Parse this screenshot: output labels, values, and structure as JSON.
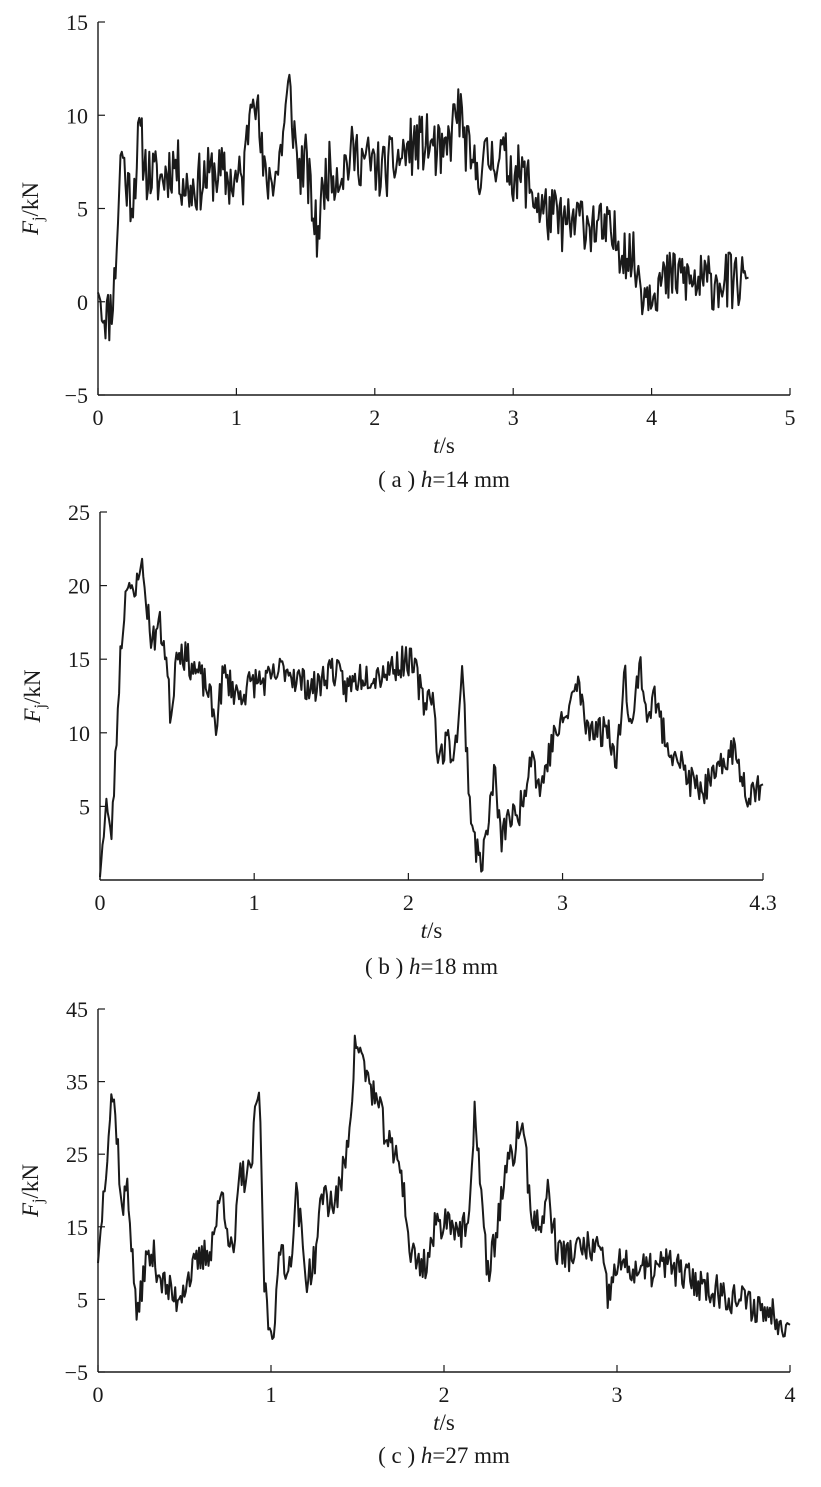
{
  "chart_data": [
    {
      "type": "line",
      "ylabel_main": "F",
      "ylabel_sub": "j",
      "ylabel_unit": "/kN",
      "xlabel_main": "t",
      "xlabel_unit": "/s",
      "caption": {
        "open": "( a ) ",
        "var": "h",
        "rest": "=14 mm"
      },
      "xlim": [
        0,
        5
      ],
      "ylim": [
        -5,
        15
      ],
      "xticks": [
        0,
        1,
        2,
        3,
        4,
        5
      ],
      "xtick_labels": [
        "0",
        "1",
        "2",
        "3",
        "4",
        "5"
      ],
      "yticks": [
        -5,
        0,
        5,
        10,
        15
      ],
      "ytick_labels": [
        "−5",
        "0",
        "5",
        "10",
        "15"
      ],
      "grid": false,
      "noise": 1.6,
      "seed": 11,
      "series": [
        {
          "x": [
            0,
            0.04,
            0.08,
            0.12,
            0.15,
            0.17,
            0.2,
            0.25,
            0.3,
            0.35,
            0.45,
            0.55,
            0.65,
            0.75,
            0.85,
            0.95,
            1.05,
            1.12,
            1.2,
            1.3,
            1.38,
            1.45,
            1.5,
            1.58,
            1.65,
            1.75,
            1.85,
            1.95,
            2.05,
            2.15,
            2.22,
            2.3,
            2.4,
            2.5,
            2.6,
            2.7,
            2.8,
            2.9,
            3.0,
            3.1,
            3.2,
            3.3,
            3.4,
            3.5,
            3.6,
            3.7,
            3.8,
            3.88,
            3.95,
            4.0,
            4.1,
            4.2,
            4.3,
            4.4,
            4.5,
            4.6,
            4.7
          ],
          "y": [
            0.5,
            -0.5,
            -0.8,
            1.0,
            5.5,
            8.5,
            6.5,
            5.5,
            9.0,
            7.0,
            6.5,
            7.5,
            6.0,
            6.5,
            7.0,
            6.5,
            6.5,
            12.5,
            6.5,
            7.0,
            11.5,
            7.0,
            7.5,
            3.5,
            7.0,
            7.0,
            8.0,
            7.5,
            7.0,
            7.5,
            8.0,
            8.5,
            8.5,
            7.5,
            10.5,
            7.0,
            7.5,
            8.0,
            7.0,
            6.5,
            5.0,
            4.5,
            4.0,
            4.5,
            4.0,
            3.5,
            3.0,
            2.0,
            0.5,
            1.0,
            1.0,
            1.5,
            1.0,
            1.0,
            1.2,
            1.0,
            1.3
          ]
        }
      ]
    },
    {
      "type": "line",
      "ylabel_main": "F",
      "ylabel_sub": "j",
      "ylabel_unit": "/kN",
      "xlabel_main": "t",
      "xlabel_unit": "/s",
      "caption": {
        "open": "( b ) ",
        "var": "h",
        "rest": "=18 mm"
      },
      "xlim": [
        0,
        4.3
      ],
      "ylim": [
        0,
        25
      ],
      "xticks": [
        0,
        1,
        2,
        3,
        4.3
      ],
      "xtick_labels": [
        "0",
        "1",
        "2",
        "3",
        "4.3"
      ],
      "yticks": [
        5,
        10,
        15,
        20,
        25
      ],
      "ytick_labels": [
        "5",
        "10",
        "15",
        "20",
        "25"
      ],
      "grid": false,
      "noise": 1.1,
      "seed": 23,
      "series": [
        {
          "x": [
            0,
            0.04,
            0.07,
            0.1,
            0.13,
            0.18,
            0.22,
            0.26,
            0.3,
            0.34,
            0.38,
            0.42,
            0.46,
            0.5,
            0.6,
            0.7,
            0.75,
            0.8,
            0.9,
            1.0,
            1.1,
            1.2,
            1.3,
            1.4,
            1.5,
            1.6,
            1.7,
            1.8,
            1.9,
            2.0,
            2.05,
            2.1,
            2.15,
            2.2,
            2.25,
            2.3,
            2.35,
            2.4,
            2.45,
            2.48,
            2.52,
            2.56,
            2.6,
            2.65,
            2.7,
            2.75,
            2.8,
            2.85,
            2.9,
            2.95,
            3.0,
            3.05,
            3.1,
            3.15,
            3.2,
            3.25,
            3.3,
            3.35,
            3.4,
            3.45,
            3.5,
            3.55,
            3.6,
            3.65,
            3.7,
            3.75,
            3.8,
            3.9,
            4.0,
            4.1,
            4.2,
            4.3
          ],
          "y": [
            0.2,
            5.5,
            2.5,
            8.0,
            15.0,
            21.0,
            18.5,
            22.0,
            19.0,
            16.0,
            17.5,
            16.0,
            11.0,
            16.0,
            14.5,
            13.0,
            10.5,
            14.0,
            12.5,
            13.5,
            13.5,
            14.5,
            13.5,
            13.0,
            14.5,
            13.0,
            14.0,
            14.0,
            14.5,
            15.0,
            14.0,
            12.0,
            13.0,
            8.0,
            9.5,
            8.5,
            14.0,
            5.0,
            1.5,
            1.5,
            4.0,
            7.5,
            2.5,
            4.5,
            4.0,
            6.0,
            9.0,
            6.0,
            8.0,
            10.0,
            10.5,
            12.0,
            13.5,
            10.5,
            10.5,
            10.0,
            10.5,
            7.5,
            14.5,
            10.0,
            15.0,
            11.0,
            12.5,
            10.0,
            9.0,
            8.5,
            7.0,
            6.0,
            7.0,
            9.0,
            6.0,
            6.5
          ]
        }
      ]
    },
    {
      "type": "line",
      "ylabel_main": "F",
      "ylabel_sub": "j",
      "ylabel_unit": "/kN",
      "xlabel_main": "t",
      "xlabel_unit": "/s",
      "caption": {
        "open": "( c ) ",
        "var": "h",
        "rest": "=27 mm"
      },
      "xlim": [
        0,
        4
      ],
      "ylim": [
        -5,
        45
      ],
      "xticks": [
        0,
        1,
        2,
        3,
        4
      ],
      "xtick_labels": [
        "0",
        "1",
        "2",
        "3",
        "4"
      ],
      "yticks": [
        -5,
        5,
        15,
        25,
        35,
        45
      ],
      "ytick_labels": [
        "−5",
        "5",
        "15",
        "25",
        "35",
        "45"
      ],
      "grid": false,
      "noise": 2.4,
      "seed": 37,
      "series": [
        {
          "x": [
            0,
            0.04,
            0.08,
            0.11,
            0.14,
            0.17,
            0.2,
            0.23,
            0.27,
            0.32,
            0.38,
            0.45,
            0.52,
            0.58,
            0.65,
            0.72,
            0.78,
            0.82,
            0.88,
            0.93,
            0.96,
            0.99,
            1.02,
            1.06,
            1.1,
            1.15,
            1.2,
            1.25,
            1.3,
            1.35,
            1.4,
            1.45,
            1.49,
            1.55,
            1.6,
            1.65,
            1.7,
            1.75,
            1.8,
            1.85,
            1.9,
            1.95,
            2.0,
            2.05,
            2.1,
            2.15,
            2.18,
            2.22,
            2.25,
            2.3,
            2.35,
            2.4,
            2.45,
            2.5,
            2.55,
            2.6,
            2.65,
            2.7,
            2.8,
            2.9,
            2.95,
            3.0,
            3.1,
            3.2,
            3.3,
            3.4,
            3.5,
            3.6,
            3.7,
            3.8,
            3.9,
            4.0
          ],
          "y": [
            10,
            22,
            34,
            28,
            16,
            22,
            10,
            2,
            10,
            11,
            7,
            5,
            8,
            10,
            12,
            20,
            10,
            22,
            22,
            35,
            8,
            1,
            2,
            13,
            8,
            20,
            8,
            10,
            20,
            18,
            20,
            28,
            41,
            36,
            33,
            29,
            25,
            24,
            12,
            10,
            10,
            15,
            16,
            16,
            14,
            16,
            32,
            18,
            8,
            14,
            22,
            25,
            30,
            18,
            14,
            20,
            12,
            11,
            12,
            12,
            5,
            10,
            9,
            9,
            10,
            8,
            7,
            6,
            5,
            4,
            3,
            1.5
          ]
        }
      ]
    }
  ]
}
